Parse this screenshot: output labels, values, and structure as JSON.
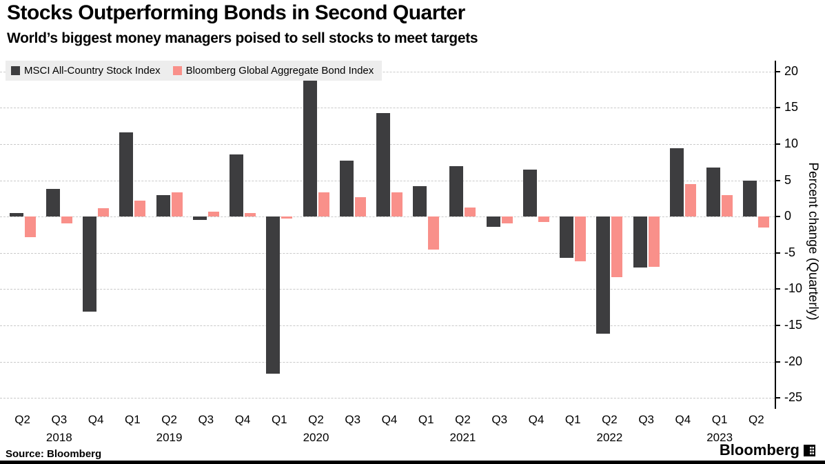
{
  "title": "Stocks Outperforming Bonds in Second Quarter",
  "subtitle": "World’s biggest money managers poised to sell stocks to meet targets",
  "legend": [
    {
      "label": "MSCI All-Country Stock Index",
      "color": "#3d3d3f"
    },
    {
      "label": "Bloomberg Global Aggregate Bond Index",
      "color": "#f9908a"
    }
  ],
  "source": "Source: Bloomberg",
  "brand": "Bloomberg",
  "chart_data": {
    "type": "bar",
    "title": "Stocks Outperforming Bonds in Second Quarter",
    "subtitle": "World’s biggest money managers poised to sell stocks to meet targets",
    "ylabel": "Percent change (Quarterly)",
    "ylim": [
      -25,
      20
    ],
    "yticks": [
      20,
      15,
      10,
      5,
      0,
      -5,
      -10,
      -15,
      -20,
      -25
    ],
    "grid": "horizontal-dashed",
    "legend_position": "top-left",
    "categories": [
      "Q2",
      "Q3",
      "Q4",
      "Q1",
      "Q2",
      "Q3",
      "Q4",
      "Q1",
      "Q2",
      "Q3",
      "Q4",
      "Q1",
      "Q2",
      "Q3",
      "Q4",
      "Q1",
      "Q2",
      "Q3",
      "Q4",
      "Q1",
      "Q2"
    ],
    "years": [
      {
        "label": "2018",
        "center_index": 1
      },
      {
        "label": "2019",
        "center_index": 4
      },
      {
        "label": "2020",
        "center_index": 8
      },
      {
        "label": "2021",
        "center_index": 12
      },
      {
        "label": "2022",
        "center_index": 16
      },
      {
        "label": "2023",
        "center_index": 19
      }
    ],
    "series": [
      {
        "name": "MSCI All-Country Stock Index",
        "color": "#3d3d3f",
        "values": [
          0.5,
          3.8,
          -13.1,
          11.6,
          3.0,
          -0.5,
          8.6,
          -21.7,
          18.7,
          7.7,
          14.3,
          4.2,
          7.0,
          -1.4,
          6.5,
          -5.7,
          -16.1,
          -7.0,
          9.4,
          6.8,
          5.0
        ]
      },
      {
        "name": "Bloomberg Global Aggregate Bond Index",
        "color": "#f9908a",
        "values": [
          -2.8,
          -0.9,
          1.2,
          2.2,
          3.3,
          0.7,
          0.5,
          -0.3,
          3.3,
          2.7,
          3.3,
          -4.5,
          1.3,
          -0.9,
          -0.7,
          -6.2,
          -8.3,
          -6.9,
          4.5,
          3.0,
          -1.5
        ]
      }
    ]
  }
}
